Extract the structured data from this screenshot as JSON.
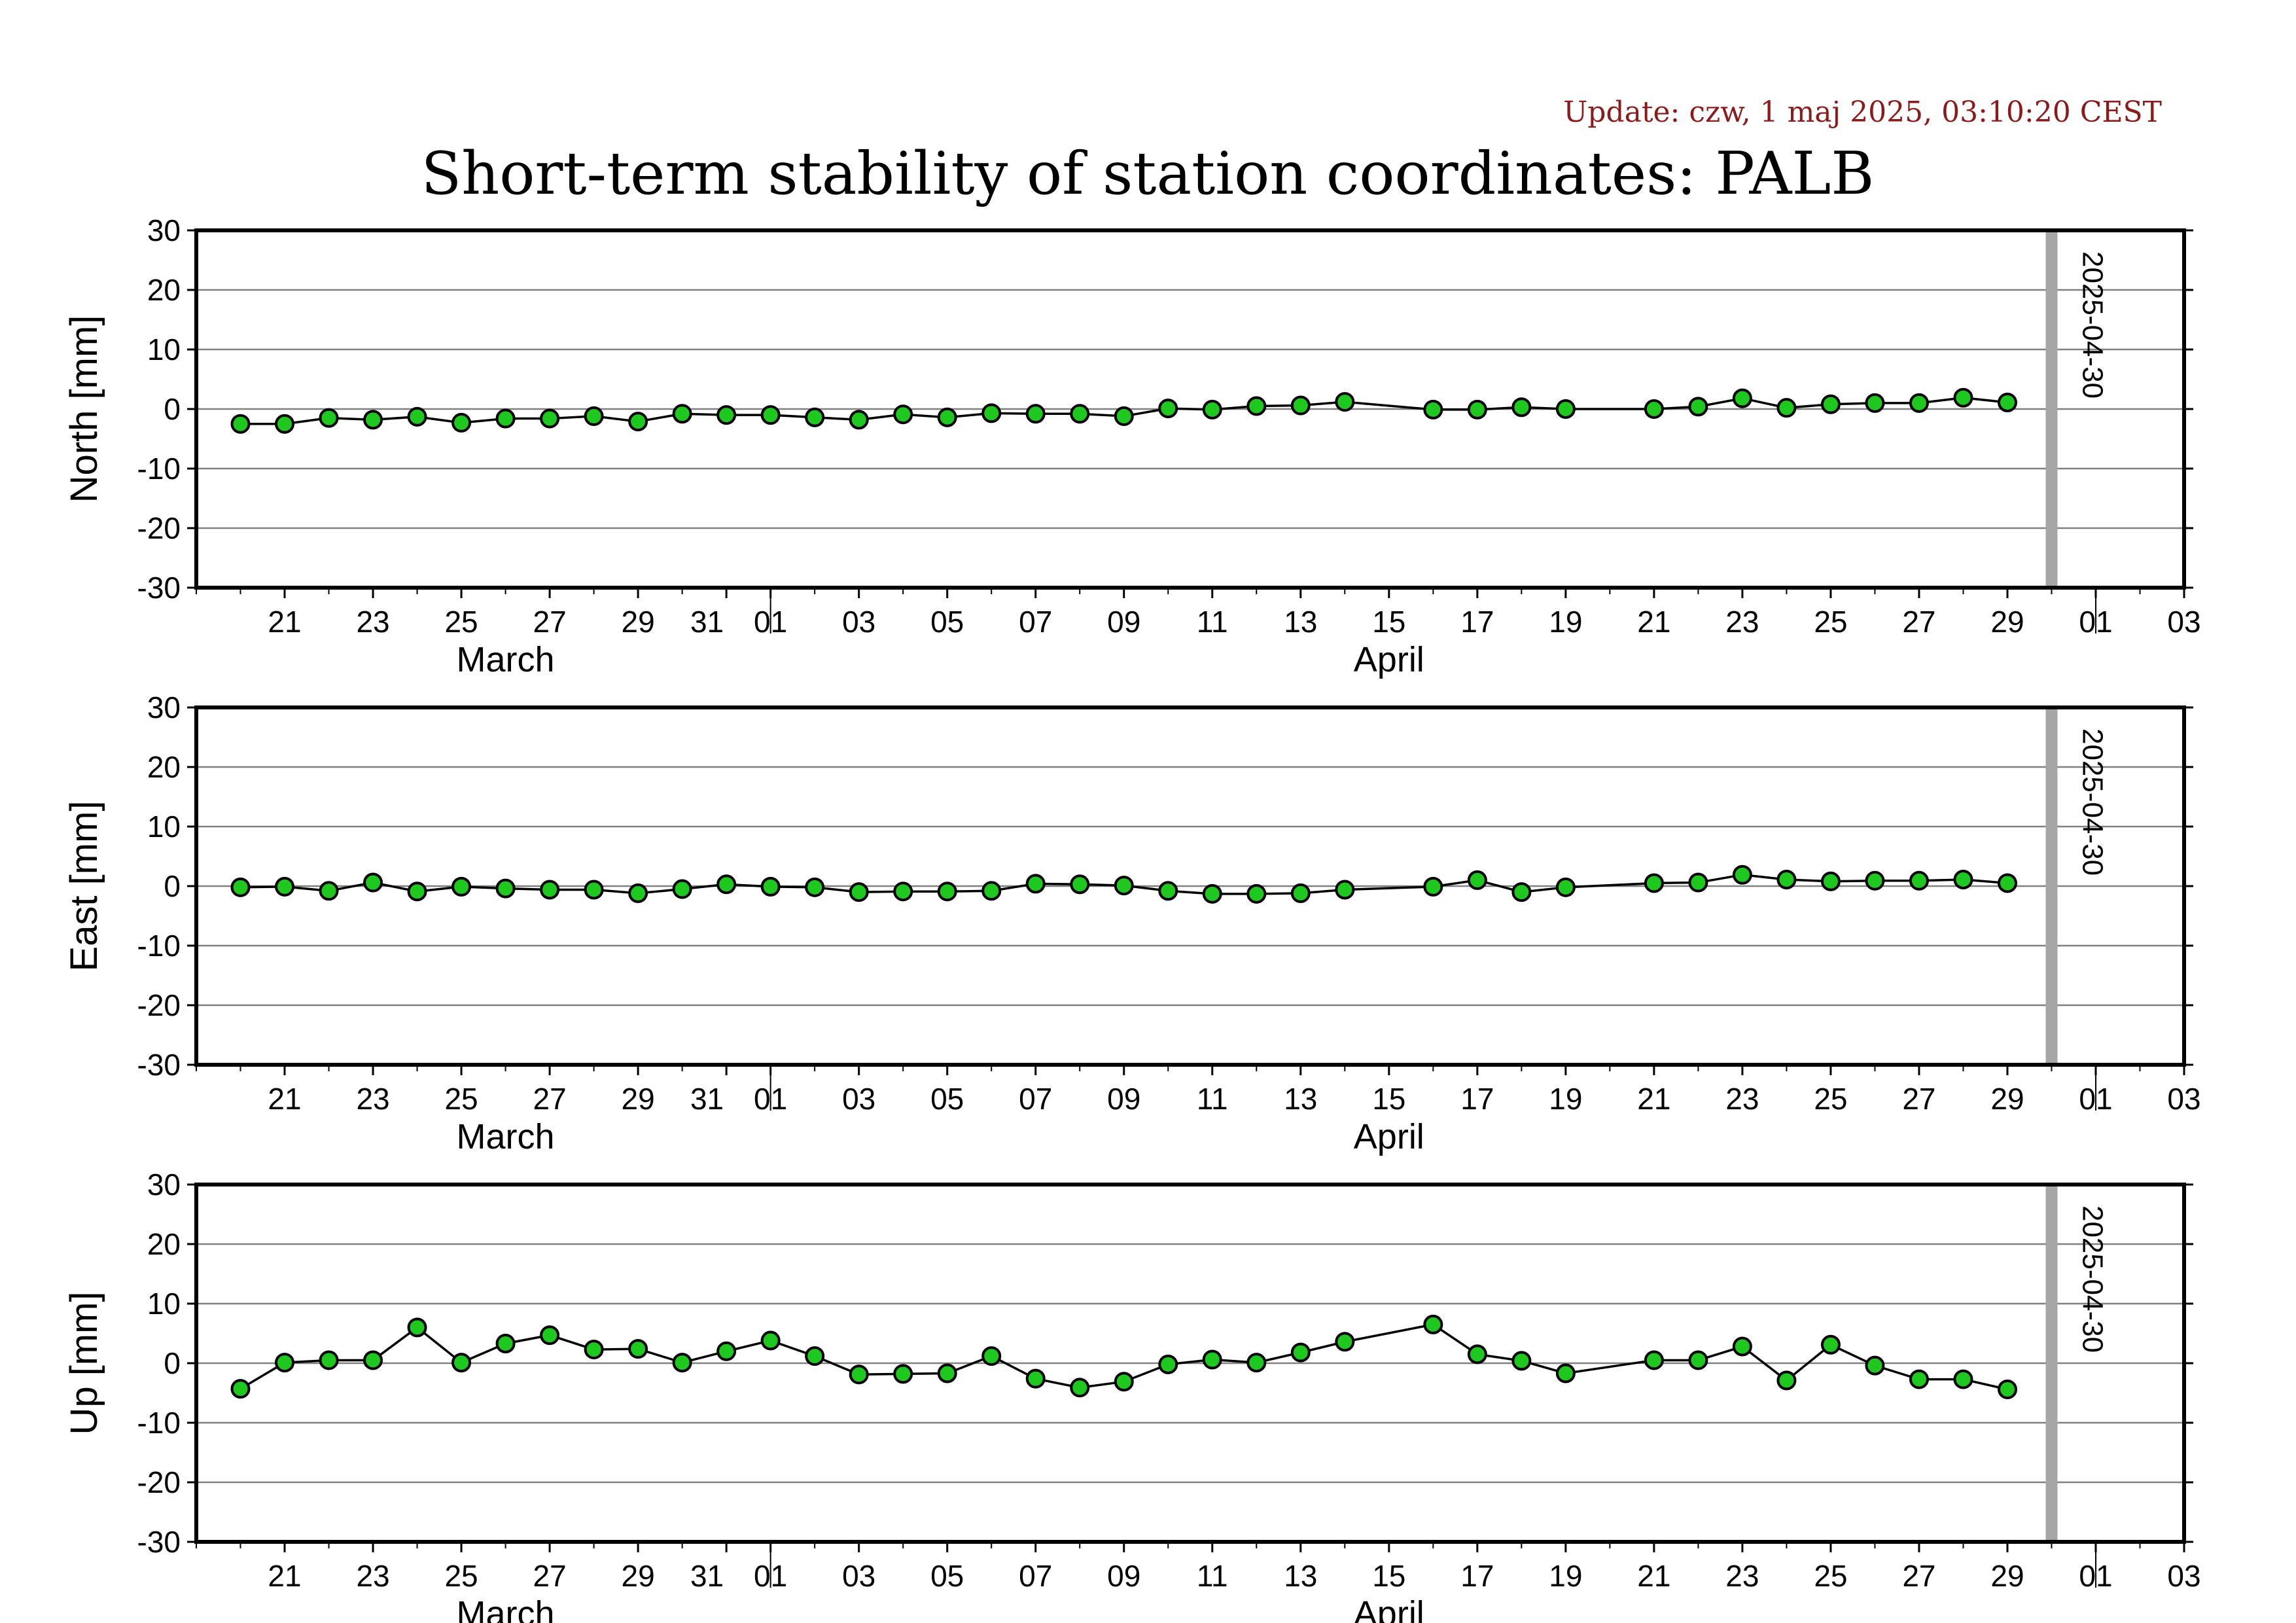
{
  "header": {
    "update": "Update: czw, 1 maj 2025, 03:10:20 CEST",
    "title": "Short-term stability of station coordinates: PALB"
  },
  "colors": {
    "marker_fill": "#1fc81f",
    "marker_stroke": "#000000",
    "line": "#000000",
    "grid": "#808080",
    "current_date_bar": "#a6a6a6",
    "update_text": "#8b1a1a"
  },
  "chart_data": [
    {
      "type": "line",
      "ylabel": "North [mm]",
      "ylim": [
        -30,
        30
      ],
      "yticks": [
        -30,
        -20,
        -10,
        0,
        10,
        20,
        30
      ],
      "xrange": [
        "2025-03-19",
        "2025-05-03"
      ],
      "xticks": [
        "21",
        "23",
        "25",
        "27",
        "29",
        "31",
        "01",
        "03",
        "05",
        "07",
        "09",
        "11",
        "13",
        "15",
        "17",
        "19",
        "21",
        "23",
        "25",
        "27",
        "29",
        "01",
        "03"
      ],
      "months": [
        "March",
        "April"
      ],
      "marker_label": "2025-04-30",
      "grid": "horizontal",
      "x": [
        "2025-03-20",
        "2025-03-21",
        "2025-03-22",
        "2025-03-23",
        "2025-03-24",
        "2025-03-25",
        "2025-03-26",
        "2025-03-27",
        "2025-03-28",
        "2025-03-29",
        "2025-03-30",
        "2025-03-31",
        "2025-04-01",
        "2025-04-02",
        "2025-04-03",
        "2025-04-04",
        "2025-04-05",
        "2025-04-06",
        "2025-04-07",
        "2025-04-08",
        "2025-04-09",
        "2025-04-10",
        "2025-04-11",
        "2025-04-12",
        "2025-04-13",
        "2025-04-14",
        "2025-04-16",
        "2025-04-17",
        "2025-04-18",
        "2025-04-19",
        "2025-04-21",
        "2025-04-22",
        "2025-04-23",
        "2025-04-24",
        "2025-04-25",
        "2025-04-26",
        "2025-04-27",
        "2025-04-28",
        "2025-04-29"
      ],
      "values": [
        -2.5,
        -2.5,
        -1.5,
        -1.8,
        -1.3,
        -2.3,
        -1.6,
        -1.6,
        -1.2,
        -2.1,
        -0.8,
        -1.0,
        -1.0,
        -1.4,
        -1.8,
        -0.9,
        -1.4,
        -0.7,
        -0.8,
        -0.8,
        -1.2,
        0.1,
        -0.1,
        0.5,
        0.6,
        1.2,
        -0.1,
        -0.1,
        0.3,
        0.0,
        0.0,
        0.4,
        1.8,
        0.2,
        0.8,
        1.0,
        1.0,
        1.9,
        1.1
      ]
    },
    {
      "type": "line",
      "ylabel": "East [mm]",
      "ylim": [
        -30,
        30
      ],
      "yticks": [
        -30,
        -20,
        -10,
        0,
        10,
        20,
        30
      ],
      "xrange": [
        "2025-03-19",
        "2025-05-03"
      ],
      "xticks": [
        "21",
        "23",
        "25",
        "27",
        "29",
        "31",
        "01",
        "03",
        "05",
        "07",
        "09",
        "11",
        "13",
        "15",
        "17",
        "19",
        "21",
        "23",
        "25",
        "27",
        "29",
        "01",
        "03"
      ],
      "months": [
        "March",
        "April"
      ],
      "marker_label": "2025-04-30",
      "grid": "horizontal",
      "x": [
        "2025-03-20",
        "2025-03-21",
        "2025-03-22",
        "2025-03-23",
        "2025-03-24",
        "2025-03-25",
        "2025-03-26",
        "2025-03-27",
        "2025-03-28",
        "2025-03-29",
        "2025-03-30",
        "2025-03-31",
        "2025-04-01",
        "2025-04-02",
        "2025-04-03",
        "2025-04-04",
        "2025-04-05",
        "2025-04-06",
        "2025-04-07",
        "2025-04-08",
        "2025-04-09",
        "2025-04-10",
        "2025-04-11",
        "2025-04-12",
        "2025-04-13",
        "2025-04-14",
        "2025-04-16",
        "2025-04-17",
        "2025-04-18",
        "2025-04-19",
        "2025-04-21",
        "2025-04-22",
        "2025-04-23",
        "2025-04-24",
        "2025-04-25",
        "2025-04-26",
        "2025-04-27",
        "2025-04-28",
        "2025-04-29"
      ],
      "values": [
        -0.2,
        -0.1,
        -0.8,
        0.6,
        -0.9,
        -0.1,
        -0.4,
        -0.6,
        -0.6,
        -1.2,
        -0.5,
        0.3,
        -0.1,
        -0.2,
        -1.0,
        -0.9,
        -0.9,
        -0.8,
        0.4,
        0.3,
        0.1,
        -0.8,
        -1.3,
        -1.3,
        -1.2,
        -0.6,
        -0.1,
        1.0,
        -1.0,
        -0.2,
        0.5,
        0.6,
        1.9,
        1.1,
        0.8,
        0.9,
        0.9,
        1.1,
        0.5
      ]
    },
    {
      "type": "line",
      "ylabel": "Up [mm]",
      "ylim": [
        -30,
        30
      ],
      "yticks": [
        -30,
        -20,
        -10,
        0,
        10,
        20,
        30
      ],
      "xrange": [
        "2025-03-19",
        "2025-05-03"
      ],
      "xticks": [
        "21",
        "23",
        "25",
        "27",
        "29",
        "31",
        "01",
        "03",
        "05",
        "07",
        "09",
        "11",
        "13",
        "15",
        "17",
        "19",
        "21",
        "23",
        "25",
        "27",
        "29",
        "01",
        "03"
      ],
      "months": [
        "March",
        "April"
      ],
      "marker_label": "2025-04-30",
      "grid": "horizontal",
      "x": [
        "2025-03-20",
        "2025-03-21",
        "2025-03-22",
        "2025-03-23",
        "2025-03-24",
        "2025-03-25",
        "2025-03-26",
        "2025-03-27",
        "2025-03-28",
        "2025-03-29",
        "2025-03-30",
        "2025-03-31",
        "2025-04-01",
        "2025-04-02",
        "2025-04-03",
        "2025-04-04",
        "2025-04-05",
        "2025-04-06",
        "2025-04-07",
        "2025-04-08",
        "2025-04-09",
        "2025-04-10",
        "2025-04-11",
        "2025-04-12",
        "2025-04-13",
        "2025-04-14",
        "2025-04-16",
        "2025-04-17",
        "2025-04-18",
        "2025-04-19",
        "2025-04-21",
        "2025-04-22",
        "2025-04-23",
        "2025-04-24",
        "2025-04-25",
        "2025-04-26",
        "2025-04-27",
        "2025-04-28",
        "2025-04-29"
      ],
      "values": [
        -4.3,
        0.1,
        0.5,
        0.5,
        6.0,
        0.1,
        3.3,
        4.7,
        2.3,
        2.4,
        0.1,
        2.0,
        3.8,
        1.2,
        -1.9,
        -1.8,
        -1.7,
        1.2,
        -2.6,
        -4.1,
        -3.1,
        -0.2,
        0.6,
        0.1,
        1.8,
        3.6,
        6.5,
        1.5,
        0.4,
        -1.7,
        0.5,
        0.5,
        2.8,
        -2.9,
        3.1,
        -0.4,
        -2.7,
        -2.7,
        -4.4
      ]
    }
  ]
}
